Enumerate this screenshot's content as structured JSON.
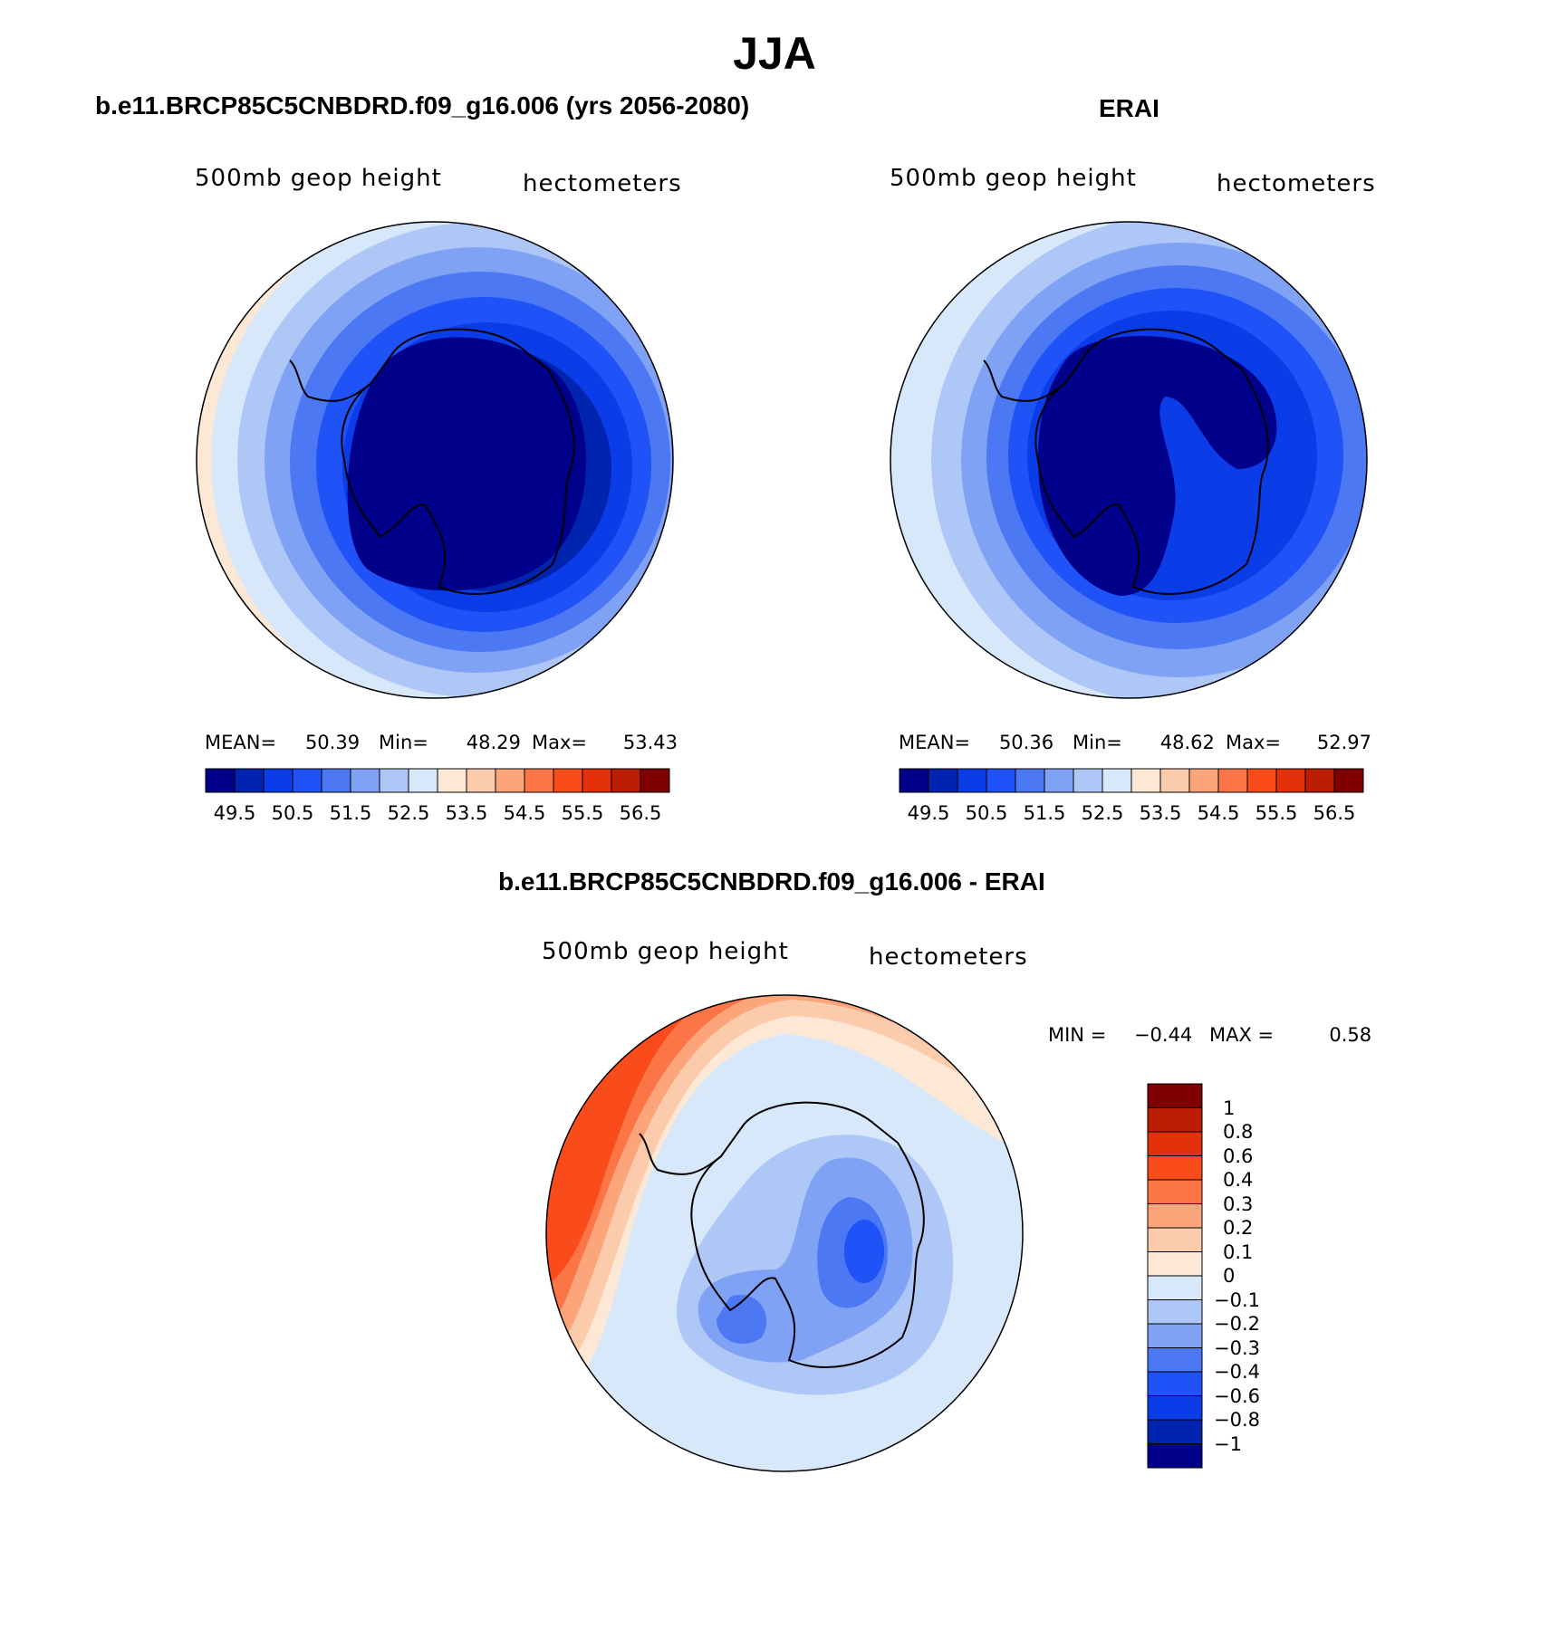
{
  "title": "JJA",
  "colors": {
    "abs_scale": [
      "#00008a",
      "#0023b0",
      "#0a3ce8",
      "#1f52f7",
      "#4c78f4",
      "#7fa2f4",
      "#afc7f7",
      "#d8e8fb",
      "#fde8d6",
      "#fccbab",
      "#fca47a",
      "#fb7546",
      "#fa4b1b",
      "#e4300b",
      "#bd1d02",
      "#7f0000"
    ],
    "diff_scale": [
      "#7f0000",
      "#bd1d02",
      "#e4300b",
      "#fa4b1b",
      "#fb7546",
      "#fca47a",
      "#fccbab",
      "#fde8d6",
      "#d8e8fb",
      "#afc7f7",
      "#7fa2f4",
      "#4c78f4",
      "#1f52f7",
      "#0a3ce8",
      "#0023b0",
      "#00008a"
    ]
  },
  "panels": {
    "model": {
      "heading": "b.e11.BRCP85C5CNBDRD.f09_g16.006 (yrs 2056-2080)",
      "variable": "500mb geop height",
      "units": "hectometers",
      "stats": {
        "mean_label": "MEAN=",
        "mean": "50.39",
        "min_label": "Min=",
        "min": "48.29",
        "max_label": "Max=",
        "max": "53.43"
      },
      "colorbar_labels": [
        "49.5",
        "50.5",
        "51.5",
        "52.5",
        "53.5",
        "54.5",
        "55.5",
        "56.5"
      ]
    },
    "obs": {
      "heading": "ERAI",
      "variable": "500mb geop height",
      "units": "hectometers",
      "stats": {
        "mean_label": "MEAN=",
        "mean": "50.36",
        "min_label": "Min=",
        "min": "48.62",
        "max_label": "Max=",
        "max": "52.97"
      },
      "colorbar_labels": [
        "49.5",
        "50.5",
        "51.5",
        "52.5",
        "53.5",
        "54.5",
        "55.5",
        "56.5"
      ]
    },
    "diff": {
      "heading": "b.e11.BRCP85C5CNBDRD.f09_g16.006 - ERAI",
      "variable": "500mb geop height",
      "units": "hectometers",
      "stats": {
        "min_label": "MIN =",
        "min": "−0.44",
        "max_label": "MAX =",
        "max": "0.58"
      },
      "colorbar_labels": [
        "1",
        "0.8",
        "0.6",
        "0.4",
        "0.3",
        "0.2",
        "0.1",
        "0",
        "−0.1",
        "−0.2",
        "−0.3",
        "−0.4",
        "−0.6",
        "−0.8",
        "−1"
      ]
    }
  }
}
